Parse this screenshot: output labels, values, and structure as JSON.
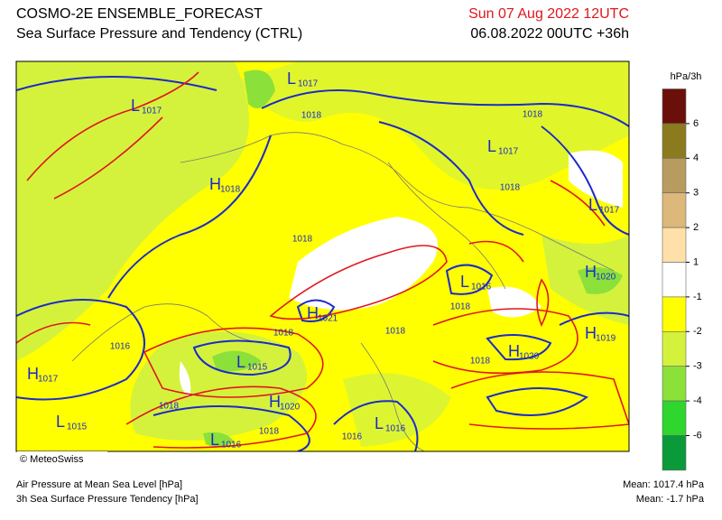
{
  "header": {
    "title": "COSMO-2E ENSEMBLE_FORECAST",
    "subtitle": "Sea Surface Pressure and Tendency (CTRL)",
    "valid_time": "Sun 07 Aug 2022 12UTC",
    "run_time": "06.08.2022 00UTC +36h"
  },
  "legend": {
    "unit": "hPa/3h",
    "ticks": [
      6,
      4,
      3,
      2,
      1,
      -1,
      -2,
      -3,
      -4,
      -6
    ],
    "colors": [
      "#6b0f0a",
      "#8c7a1e",
      "#b89b5e",
      "#dcb87a",
      "#ffe0a8",
      "#ffffff",
      "#ffff00",
      "#d4f23c",
      "#8ce03a",
      "#2ed62e",
      "#0a9a3a"
    ]
  },
  "map": {
    "centers": [
      {
        "type": "L",
        "value": 1017
      },
      {
        "type": "L",
        "value": 1017
      },
      {
        "type": "H",
        "value": 1018
      },
      {
        "type": "L",
        "value": 1017
      },
      {
        "type": "L",
        "value": 1017
      },
      {
        "type": "H",
        "value": 1020
      },
      {
        "type": "L",
        "value": 1016
      },
      {
        "type": "H",
        "value": 1021
      },
      {
        "type": "H",
        "value": 1019
      },
      {
        "type": "H",
        "value": 1020
      },
      {
        "type": "L",
        "value": 1015
      },
      {
        "type": "H",
        "value": 1017
      },
      {
        "type": "H",
        "value": 1020
      },
      {
        "type": "L",
        "value": 1015
      },
      {
        "type": "L",
        "value": 1016
      },
      {
        "type": "L",
        "value": 1016
      }
    ],
    "isobar_labels": [
      1018,
      1018,
      1018,
      1018,
      1018,
      1018,
      1018,
      1018,
      1018,
      1018,
      1016,
      1016
    ],
    "credit": "© MeteoSwiss"
  },
  "footer": {
    "left": [
      "Air Pressure at Mean Sea Level [hPa]",
      "3h Sea Surface Pressure Tendency [hPa]"
    ],
    "right": [
      "Mean: 1017.4 hPa",
      "Mean:  -1.7 hPa"
    ]
  }
}
